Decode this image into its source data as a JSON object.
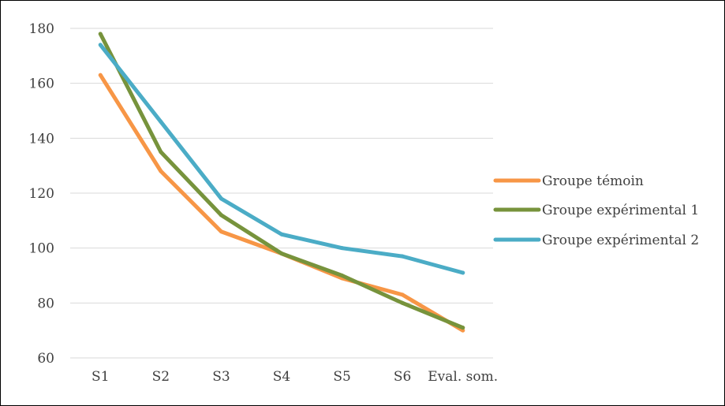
{
  "chart_data": {
    "type": "line",
    "categories": [
      "S1",
      "S2",
      "S3",
      "S4",
      "S5",
      "S6",
      "Eval. som."
    ],
    "ylim": [
      60,
      180
    ],
    "yticks": [
      60,
      80,
      100,
      120,
      140,
      160,
      180
    ],
    "grid": true,
    "legend_position": "right",
    "series": [
      {
        "name": "Groupe témoin",
        "color": "#F79646",
        "values": [
          163,
          128,
          106,
          98,
          89,
          83,
          70
        ]
      },
      {
        "name": "Groupe expérimental 1",
        "color": "#77933C",
        "values": [
          178,
          135,
          112,
          98,
          90,
          80,
          71
        ]
      },
      {
        "name": "Groupe expérimental 2",
        "color": "#4BACC6",
        "values": [
          174,
          146,
          118,
          105,
          100,
          97,
          91
        ]
      }
    ]
  }
}
